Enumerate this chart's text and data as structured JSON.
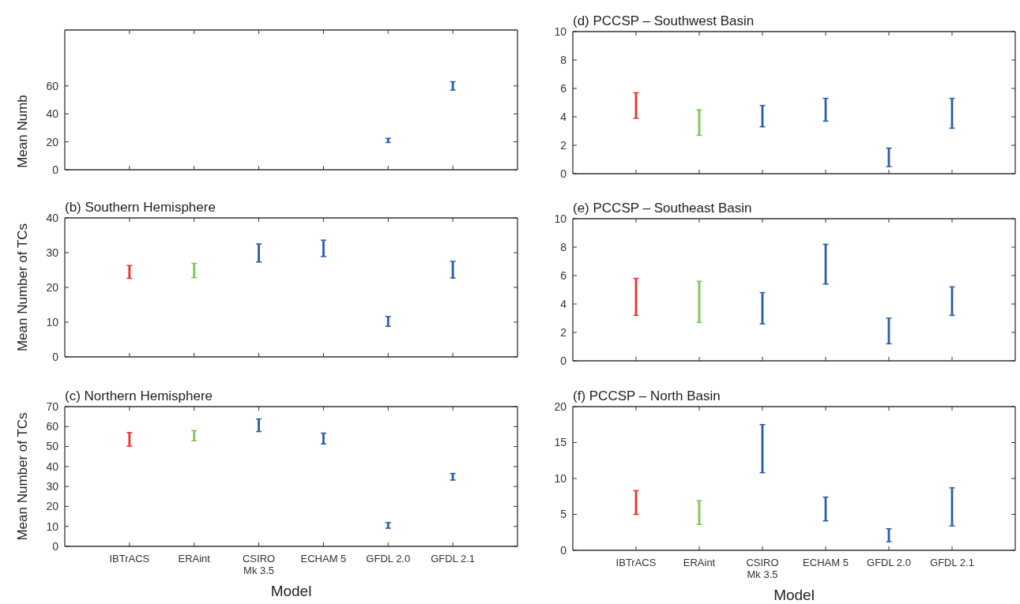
{
  "chart_data": [
    {
      "type": "bar",
      "ylabel": "Mean Numb",
      "categories": [
        null,
        null,
        null,
        null,
        null,
        null
      ],
      "base": [
        null,
        null,
        null,
        null,
        19.5,
        57
      ],
      "values": [
        null,
        null,
        null,
        null,
        3,
        6
      ],
      "colors": [
        null,
        null,
        null,
        null,
        "#2a5caa",
        "#2a5caa"
      ],
      "ylim": [
        0,
        100
      ],
      "yticks": [
        0,
        20,
        40,
        60
      ],
      "tick_labels": "y"
    },
    {
      "type": "bar",
      "title": "(b) Southern Hemisphere",
      "ylabel": "Mean Number of TCs",
      "categories": [
        null,
        null,
        null,
        null,
        null,
        null
      ],
      "base": [
        22.6,
        22.8,
        27.3,
        28.9,
        8.8,
        22.7
      ],
      "values": [
        3.7,
        4.1,
        5.2,
        4.7,
        2.8,
        4.8
      ],
      "colors": [
        "#e8322f",
        "#7cc653",
        "#2a5caa",
        "#2a5caa",
        "#2a5caa",
        "#2a5caa"
      ],
      "ylim": [
        0,
        40
      ],
      "yticks": [
        0,
        10,
        20,
        30,
        40
      ],
      "tick_labels": "y"
    },
    {
      "type": "bar",
      "title": "(c) Northern Hemisphere",
      "xlabel": "Model",
      "ylabel": "Mean Number of TCs",
      "categories": [
        "IBTrACS",
        "ERAint",
        "CSIRO Mk 3.5",
        "ECHAM 5",
        "GFDL 2.0",
        "GFDL 2.1"
      ],
      "base": [
        50.2,
        52.9,
        57.5,
        51.3,
        9.1,
        33.2
      ],
      "values": [
        6.8,
        5.1,
        6.3,
        5.4,
        2.8,
        3.3
      ],
      "colors": [
        "#e8322f",
        "#7cc653",
        "#2a5caa",
        "#2a5caa",
        "#2a5caa",
        "#2a5caa"
      ],
      "ylim": [
        0,
        70
      ],
      "yticks": [
        0,
        10,
        20,
        30,
        40,
        50,
        60,
        70
      ]
    },
    {
      "type": "bar",
      "title": "(d) PCCSP – Southwest Basin",
      "categories": [
        null,
        null,
        null,
        null,
        null,
        null
      ],
      "base": [
        3.9,
        2.7,
        3.3,
        3.7,
        0.5,
        3.2
      ],
      "values": [
        1.8,
        1.8,
        1.5,
        1.6,
        1.3,
        2.1
      ],
      "colors": [
        "#e8322f",
        "#7cc653",
        "#2a5caa",
        "#2a5caa",
        "#2a5caa",
        "#2a5caa"
      ],
      "ylim": [
        0,
        10
      ],
      "yticks": [
        0,
        2,
        4,
        6,
        8,
        10
      ],
      "tick_labels": "y"
    },
    {
      "type": "bar",
      "title": "(e) PCCSP – Southeast Basin",
      "categories": [
        null,
        null,
        null,
        null,
        null,
        null
      ],
      "base": [
        3.2,
        2.7,
        2.6,
        5.4,
        1.2,
        3.2
      ],
      "values": [
        2.6,
        2.9,
        2.2,
        2.8,
        1.8,
        2
      ],
      "colors": [
        "#e8322f",
        "#7cc653",
        "#2a5caa",
        "#2a5caa",
        "#2a5caa",
        "#2a5caa"
      ],
      "ylim": [
        0,
        10
      ],
      "yticks": [
        0,
        2,
        4,
        6,
        8,
        10
      ],
      "tick_labels": "y"
    },
    {
      "type": "bar",
      "title": "(f) PCCSP – North Basin",
      "xlabel": "Model",
      "categories": [
        "IBTrACS",
        "ERAint",
        "CSIRO Mk 3.5",
        "ECHAM 5",
        "GFDL 2.0",
        "GFDL 2.1"
      ],
      "base": [
        5,
        3.6,
        10.8,
        4.1,
        1.2,
        3.4
      ],
      "values": [
        3.3,
        3.3,
        6.7,
        3.3,
        1.8,
        5.3
      ],
      "colors": [
        "#e8322f",
        "#7cc653",
        "#2a5caa",
        "#2a5caa",
        "#2a5caa",
        "#2a5caa"
      ],
      "ylim": [
        0,
        20
      ],
      "yticks": [
        0,
        5,
        10,
        15,
        20
      ]
    }
  ]
}
